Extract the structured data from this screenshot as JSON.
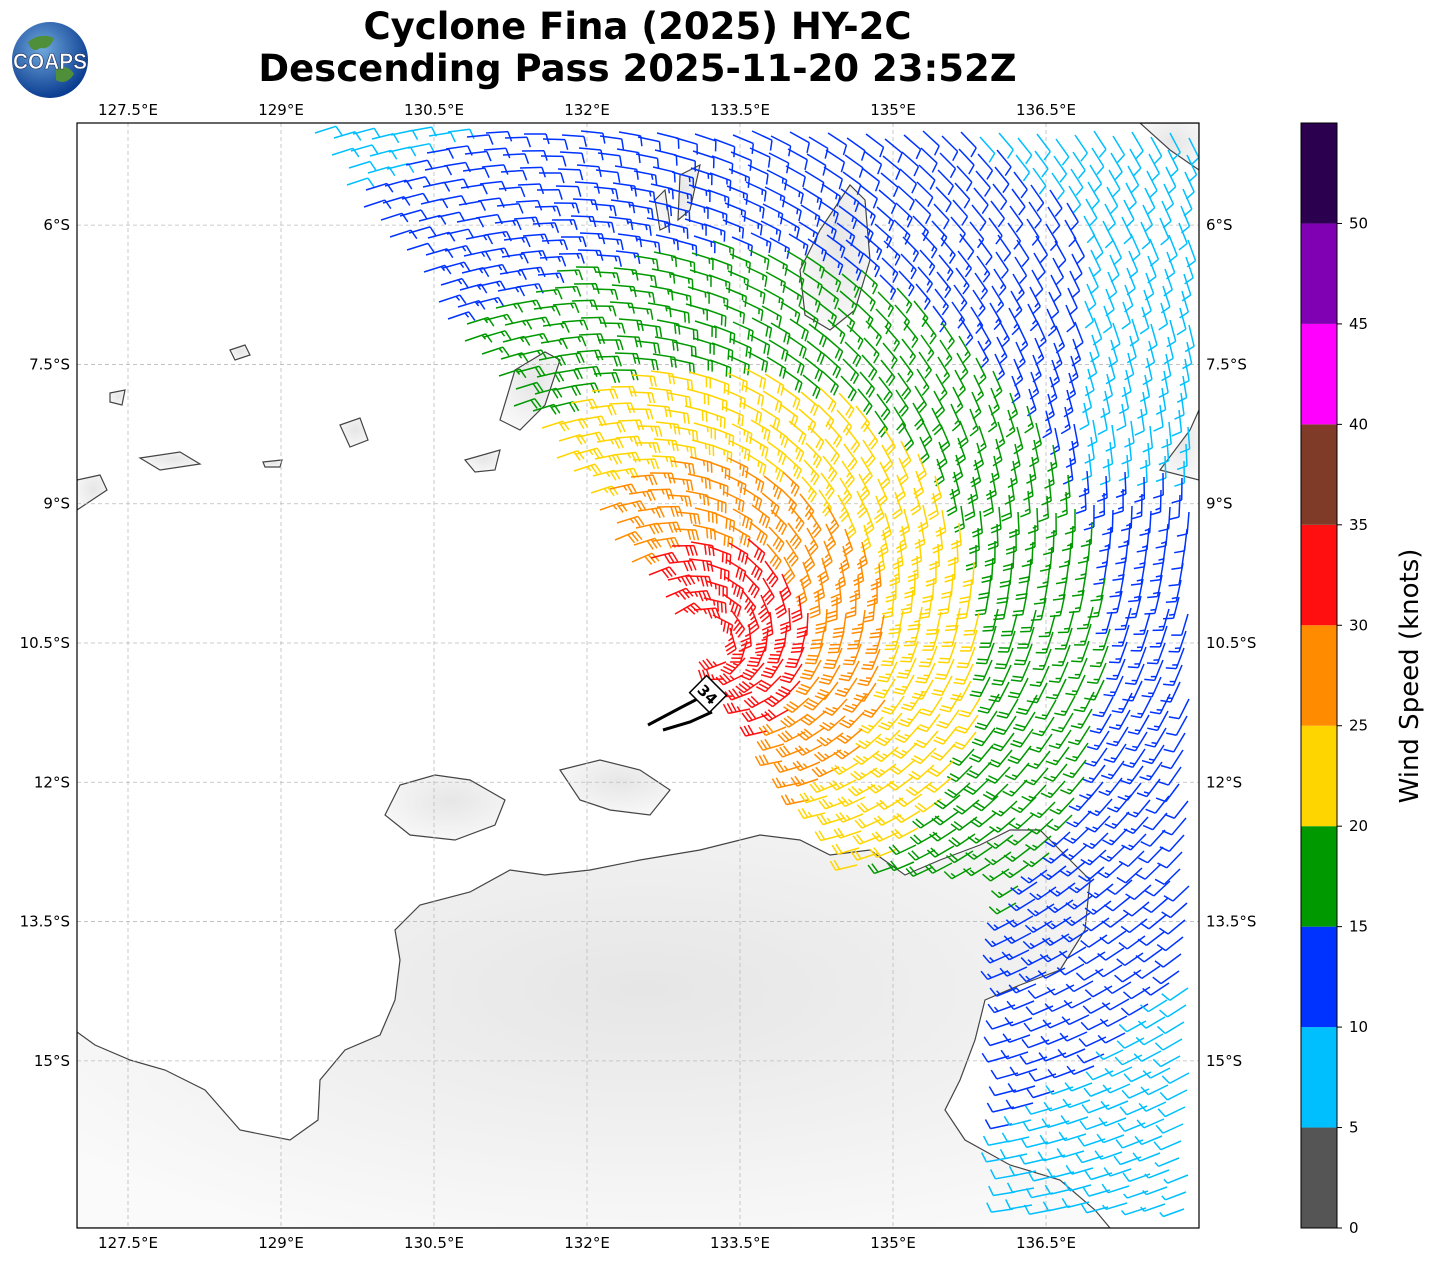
{
  "title": {
    "line1": "Cyclone Fina (2025) HY-2C",
    "line2": "Descending Pass 2025-11-20 23:52Z"
  },
  "logo": {
    "text": "COAPS",
    "icon": "globe-icon"
  },
  "map": {
    "lon_ticks": [
      "127.5°E",
      "129°E",
      "130.5°E",
      "132°E",
      "133.5°E",
      "135°E",
      "136.5°E"
    ],
    "lat_ticks": [
      "6°S",
      "7.5°S",
      "9°S",
      "10.5°S",
      "12°S",
      "13.5°S",
      "15°S"
    ],
    "lon_values": [
      127.5,
      129,
      130.5,
      132,
      133.5,
      135,
      136.5
    ],
    "lat_values": [
      -6,
      -7.5,
      -9,
      -10.5,
      -12,
      -13.5,
      -15
    ],
    "extent": {
      "lon_min": 127.0,
      "lon_max": 138.0,
      "lat_min": -16.8,
      "lat_max": -4.9
    },
    "grid": "dashed",
    "storm_marker": {
      "label": "34",
      "lon": 133.2,
      "lat": -10.5
    }
  },
  "colorbar": {
    "label": "Wind Speed (knots)",
    "ticks": [
      "0",
      "5",
      "10",
      "15",
      "20",
      "25",
      "30",
      "35",
      "40",
      "45",
      "50"
    ],
    "bins": [
      {
        "min": 0,
        "max": 5,
        "color": "#555555"
      },
      {
        "min": 5,
        "max": 10,
        "color": "#00bfff"
      },
      {
        "min": 10,
        "max": 15,
        "color": "#0033ff"
      },
      {
        "min": 15,
        "max": 20,
        "color": "#009900"
      },
      {
        "min": 20,
        "max": 25,
        "color": "#ffd500"
      },
      {
        "min": 25,
        "max": 30,
        "color": "#ff8c00"
      },
      {
        "min": 30,
        "max": 35,
        "color": "#ff0f0f"
      },
      {
        "min": 35,
        "max": 40,
        "color": "#7f3a28"
      },
      {
        "min": 40,
        "max": 45,
        "color": "#ff00ff"
      },
      {
        "min": 45,
        "max": 50,
        "color": "#8000b3"
      },
      {
        "min": 50,
        "max": 55,
        "color": "#2a004f"
      }
    ]
  },
  "wind_field": {
    "center_lon": 133.2,
    "center_lat": -10.5,
    "max_speed_kt": 33
  }
}
